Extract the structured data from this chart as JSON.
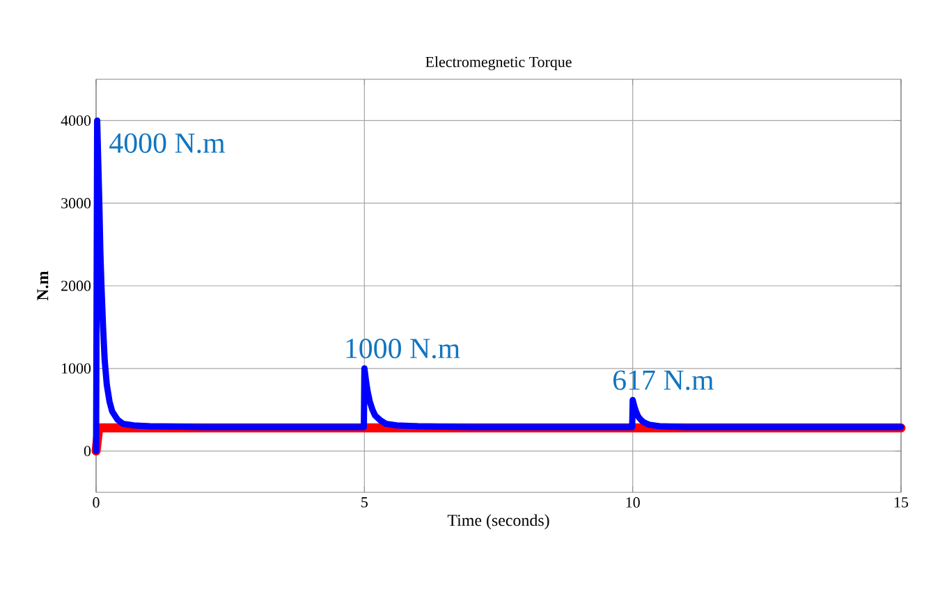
{
  "chart_data": {
    "type": "line",
    "title": "Electromegnetic Torque",
    "xlabel": "Time (seconds)",
    "ylabel": "N.m",
    "xlim": [
      0,
      15
    ],
    "ylim": [
      -500,
      4500
    ],
    "xticks": [
      0,
      5,
      10,
      15
    ],
    "yticks": [
      0,
      1000,
      2000,
      3000,
      4000
    ],
    "grid": true,
    "series": [
      {
        "color": "#ff0000",
        "x": [
          0,
          0.05,
          0.4,
          15
        ],
        "values": [
          0,
          280,
          280,
          280
        ]
      },
      {
        "color": "#0000ff",
        "x": [
          0,
          0.02,
          0.04,
          0.06,
          0.08,
          0.1,
          0.13,
          0.16,
          0.2,
          0.25,
          0.3,
          0.4,
          0.5,
          0.7,
          1,
          2,
          3,
          4,
          4.99,
          5.0,
          5.03,
          5.06,
          5.1,
          5.15,
          5.2,
          5.3,
          5.4,
          5.6,
          6,
          7,
          8,
          9,
          9.99,
          10.0,
          10.03,
          10.06,
          10.1,
          10.15,
          10.2,
          10.3,
          10.5,
          11,
          12,
          13,
          14,
          15
        ],
        "values": [
          0,
          4000,
          3500,
          3000,
          2400,
          2000,
          1500,
          1100,
          800,
          600,
          480,
          380,
          330,
          310,
          300,
          290,
          290,
          290,
          290,
          1000,
          850,
          720,
          600,
          500,
          430,
          370,
          330,
          310,
          300,
          290,
          290,
          290,
          290,
          617,
          540,
          480,
          420,
          380,
          350,
          320,
          300,
          290,
          290,
          290,
          290,
          290
        ]
      }
    ],
    "annotations": [
      {
        "text": "4000 N.m",
        "x": 0,
        "y": 4000
      },
      {
        "text": "1000 N.m",
        "x": 5,
        "y": 1000
      },
      {
        "text": "617 N.m",
        "x": 10,
        "y": 617
      }
    ]
  }
}
